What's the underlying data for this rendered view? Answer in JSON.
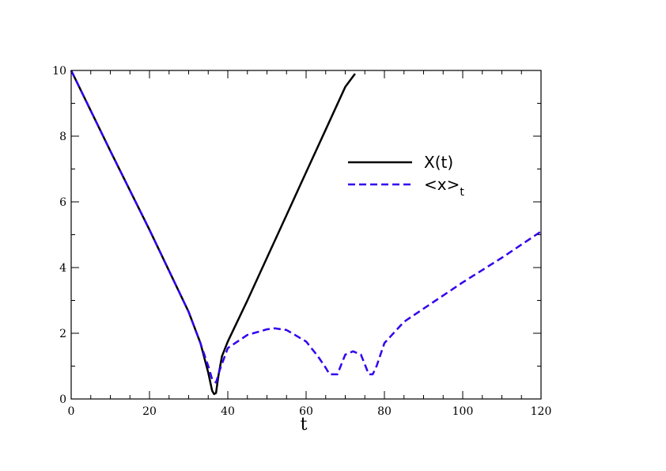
{
  "chart_data": {
    "type": "line",
    "title": "",
    "xlabel": "t",
    "ylabel": "",
    "xlim": [
      0,
      120
    ],
    "ylim": [
      0,
      10
    ],
    "xticks": [
      0,
      20,
      40,
      60,
      80,
      100,
      120
    ],
    "yticks": [
      0,
      2,
      4,
      6,
      8,
      10
    ],
    "xtick_labels": [
      "0",
      "20",
      "40",
      "60",
      "80",
      "100",
      "120"
    ],
    "ytick_labels": [
      "0",
      "2",
      "4",
      "6",
      "8",
      "10"
    ],
    "grid": false,
    "legend_position": "upper-right inside plot",
    "series": [
      {
        "name": "X(t)",
        "style": "solid",
        "color": "#000000",
        "x": [
          0,
          10,
          20,
          30,
          33,
          35,
          36,
          36.5,
          37,
          37.6,
          38.5,
          40,
          45,
          50,
          55,
          60,
          65,
          70,
          72.5
        ],
        "y": [
          10,
          7.55,
          5.15,
          2.65,
          1.7,
          0.8,
          0.25,
          0.15,
          0.18,
          0.7,
          1.3,
          1.75,
          3.0,
          4.3,
          5.6,
          6.9,
          8.2,
          9.5,
          9.9
        ]
      },
      {
        "name": "<x>",
        "name_subscript": "t",
        "style": "dashed",
        "color": "#3300ee",
        "x": [
          0,
          10,
          20,
          30,
          33,
          35,
          36,
          37,
          38,
          40,
          45,
          50,
          52,
          55,
          60,
          63,
          65,
          66,
          67,
          68,
          69,
          70,
          72,
          74,
          75,
          76,
          77,
          78,
          80,
          85,
          90,
          100,
          110,
          120
        ],
        "y": [
          10,
          7.55,
          5.15,
          2.65,
          1.7,
          1.0,
          0.6,
          0.5,
          0.9,
          1.55,
          1.95,
          2.12,
          2.15,
          2.1,
          1.75,
          1.3,
          0.95,
          0.75,
          0.75,
          0.75,
          1.05,
          1.35,
          1.45,
          1.35,
          1.05,
          0.75,
          0.75,
          1.0,
          1.7,
          2.35,
          2.75,
          3.55,
          4.3,
          5.1
        ]
      }
    ]
  }
}
